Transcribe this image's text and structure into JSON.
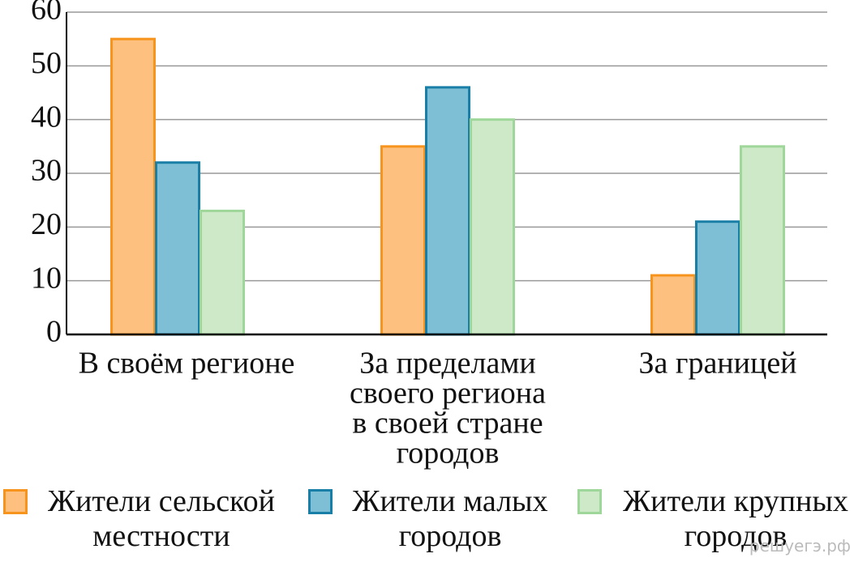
{
  "chart_data": {
    "type": "bar",
    "categories": [
      [
        "В своём регионе"
      ],
      [
        "За пределами",
        "своего региона",
        "в своей стране",
        "городов"
      ],
      [
        "За границей"
      ]
    ],
    "series": [
      {
        "name": "Жители сельской местности",
        "color": "#fdc07f",
        "stroke": "#f7941d",
        "values": [
          55,
          35,
          11
        ]
      },
      {
        "name": "Жители малых городов",
        "color": "#7fbfd6",
        "stroke": "#1a7fa6",
        "values": [
          32,
          46,
          21
        ]
      },
      {
        "name": "Жители крупных городов",
        "color": "#cde9c8",
        "stroke": "#9fd79a",
        "values": [
          23,
          40,
          35
        ]
      }
    ],
    "ylim": [
      0,
      60
    ],
    "yticks": [
      0,
      10,
      20,
      30,
      40,
      50,
      60
    ],
    "grid": true,
    "watermark": "решуегэ.рф"
  }
}
